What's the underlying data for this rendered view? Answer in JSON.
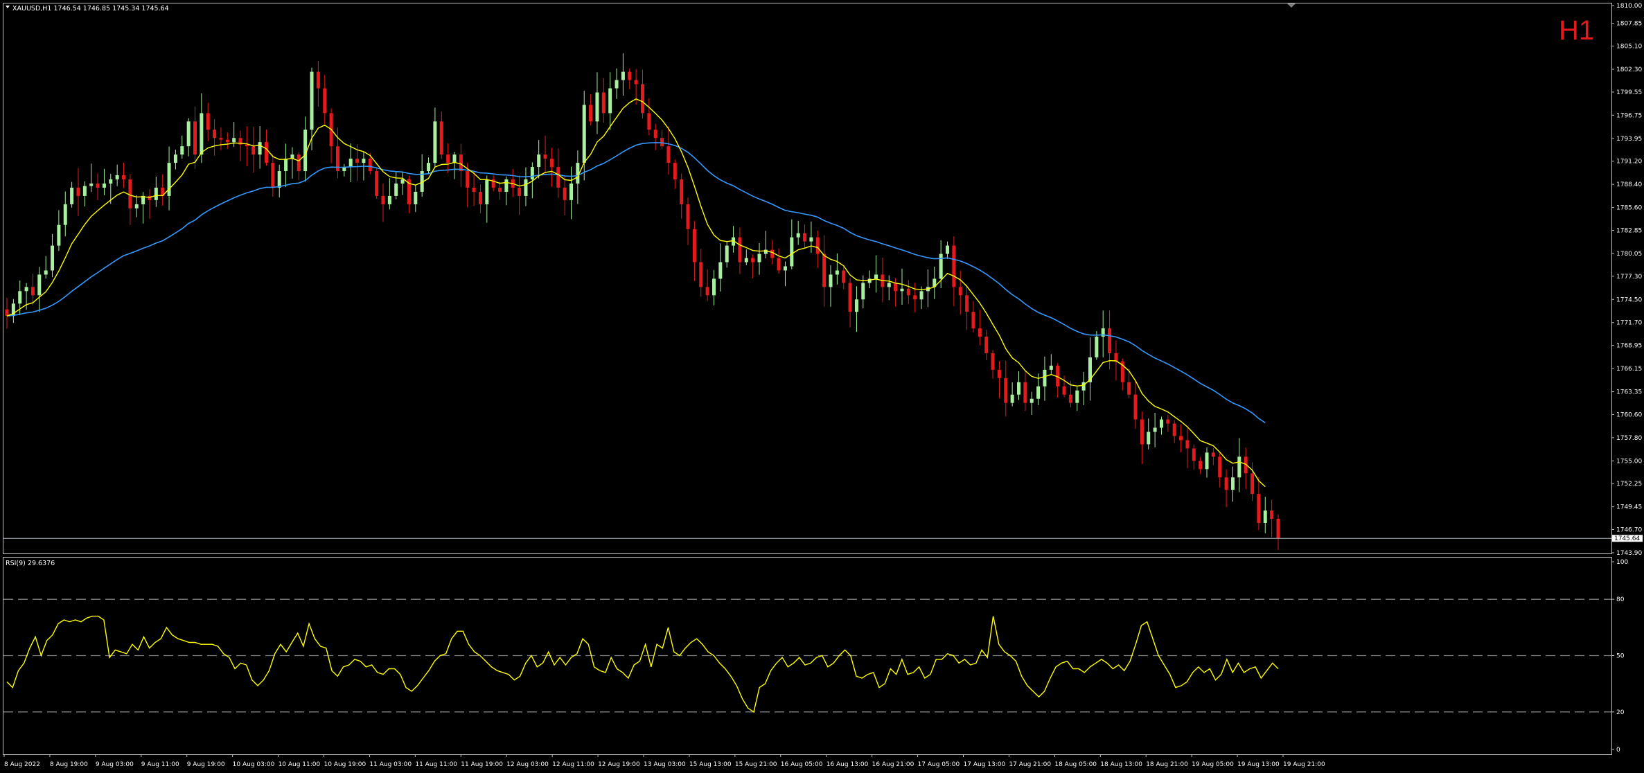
{
  "header": {
    "symbol_line": "XAUUSD,H1  1746.54 1746.85 1745.34 1745.64",
    "timeframe": "H1",
    "current_price_label": "1745.64"
  },
  "rsi": {
    "label": "RSI(9) 29.6376"
  },
  "colors": {
    "background": "#000000",
    "frame": "#c0c0c0",
    "bull_candle": "#a8f0a0",
    "bear_candle": "#e41a1c",
    "ma_fast": "#ffff00",
    "ma_slow": "#3399ff",
    "rsi_line": "#ffff00",
    "timeframe_label": "#e41a1c"
  },
  "chart_data": [
    {
      "type": "candlestick",
      "title": "XAUUSD,H1",
      "ylim": [
        1743.9,
        1810.0
      ],
      "y_ticks": [
        "1810.00",
        "1807.85",
        "1805.10",
        "1802.30",
        "1799.55",
        "1796.75",
        "1793.95",
        "1791.20",
        "1788.40",
        "1785.60",
        "1782.85",
        "1780.05",
        "1777.30",
        "1774.50",
        "1771.70",
        "1768.95",
        "1766.15",
        "1763.35",
        "1760.60",
        "1757.80",
        "1755.00",
        "1752.25",
        "1749.45",
        "1746.70",
        "1743.90"
      ],
      "x_ticks": [
        "8 Aug 2022",
        "8 Aug 19:00",
        "9 Aug 03:00",
        "9 Aug 11:00",
        "9 Aug 19:00",
        "10 Aug 03:00",
        "10 Aug 11:00",
        "10 Aug 19:00",
        "11 Aug 03:00",
        "11 Aug 11:00",
        "11 Aug 19:00",
        "12 Aug 03:00",
        "12 Aug 11:00",
        "12 Aug 19:00",
        "13 Aug 03:00",
        "15 Aug 13:00",
        "15 Aug 21:00",
        "16 Aug 05:00",
        "16 Aug 13:00",
        "16 Aug 21:00",
        "17 Aug 05:00",
        "17 Aug 13:00",
        "17 Aug 21:00",
        "18 Aug 05:00",
        "18 Aug 13:00",
        "18 Aug 21:00",
        "19 Aug 05:00",
        "19 Aug 13:00",
        "19 Aug 21:00"
      ],
      "close": [
        1772.5,
        1774.0,
        1775.5,
        1776.0,
        1775.0,
        1777.5,
        1778.0,
        1781.0,
        1783.5,
        1786.0,
        1788.0,
        1787.0,
        1788.2,
        1788.5,
        1788.0,
        1788.5,
        1789.0,
        1789.5,
        1789.0,
        1785.5,
        1786.0,
        1787.0,
        1786.5,
        1788.0,
        1787.0,
        1791.0,
        1792.0,
        1793.0,
        1796.0,
        1792.0,
        1797.0,
        1795.0,
        1794.0,
        1793.8,
        1793.5,
        1794.0,
        1793.2,
        1793.0,
        1792.0,
        1793.5,
        1791.0,
        1788.0,
        1790.0,
        1791.5,
        1792.0,
        1790.0,
        1795.0,
        1802.0,
        1800.0,
        1797.0,
        1793.0,
        1790.0,
        1790.5,
        1791.5,
        1791.0,
        1791.5,
        1790.0,
        1787.0,
        1786.0,
        1787.0,
        1788.5,
        1789.0,
        1786.0,
        1787.5,
        1790.0,
        1791.0,
        1796.0,
        1792.0,
        1791.0,
        1792.0,
        1790.0,
        1788.0,
        1787.5,
        1786.0,
        1789.0,
        1788.0,
        1787.5,
        1789.0,
        1788.0,
        1787.0,
        1789.0,
        1790.5,
        1792.0,
        1791.5,
        1790.5,
        1788.0,
        1786.5,
        1788.5,
        1791.0,
        1798.0,
        1796.0,
        1799.5,
        1797.0,
        1800.0,
        1801.0,
        1802.0,
        1801.0,
        1800.5,
        1797.0,
        1795.0,
        1794.0,
        1793.0,
        1791.0,
        1789.0,
        1786.0,
        1783.0,
        1779.0,
        1776.0,
        1775.0,
        1777.0,
        1779.0,
        1781.0,
        1782.0,
        1779.0,
        1779.5,
        1779.0,
        1780.0,
        1780.5,
        1779.5,
        1778.0,
        1778.5,
        1782.0,
        1782.5,
        1781.5,
        1782.0,
        1780.0,
        1776.0,
        1777.5,
        1778.0,
        1776.5,
        1773.0,
        1774.5,
        1776.5,
        1777.0,
        1777.5,
        1776.0,
        1776.5,
        1775.5,
        1775.8,
        1775.0,
        1774.5,
        1775.5,
        1776.0,
        1777.0,
        1780.0,
        1781.0,
        1776.0,
        1775.0,
        1773.0,
        1771.0,
        1770.0,
        1768.0,
        1766.0,
        1765.0,
        1762.0,
        1763.0,
        1764.5,
        1762.0,
        1762.5,
        1764.0,
        1766.0,
        1766.5,
        1764.0,
        1763.0,
        1762.0,
        1763.5,
        1764.5,
        1767.5,
        1770.0,
        1771.0,
        1768.0,
        1767.0,
        1764.5,
        1763.0,
        1760.0,
        1757.0,
        1758.5,
        1759.0,
        1760.0,
        1759.5,
        1758.0,
        1757.5,
        1756.5,
        1755.0,
        1754.0,
        1756.0,
        1755.5,
        1753.0,
        1751.5,
        1753.0,
        1755.5,
        1753.5,
        1751.0,
        1747.5,
        1749.0,
        1748.0,
        1745.64
      ],
      "series": [
        {
          "name": "",
          "values_role": "fast moving average"
        },
        {
          "name": "",
          "values_role": "slow moving average"
        }
      ],
      "grid": false
    },
    {
      "type": "line",
      "title": "RSI(9) 29.6376",
      "ylim": [
        0,
        100
      ],
      "y_ticks": [
        "100",
        "80",
        "50",
        "20",
        "0"
      ],
      "levels": [
        80,
        50,
        20
      ],
      "values": [
        36,
        33,
        42,
        46,
        54,
        60,
        50,
        58,
        61,
        67,
        69,
        68,
        69,
        68,
        70,
        71,
        71,
        69,
        49,
        53,
        52,
        51,
        56,
        53,
        60,
        54,
        57,
        59,
        65,
        61,
        59,
        58,
        57,
        57,
        56,
        56,
        56,
        55,
        51,
        49,
        43,
        46,
        45,
        37,
        34,
        37,
        42,
        51,
        56,
        52,
        57,
        62,
        55,
        67,
        59,
        55,
        54,
        42,
        39,
        44,
        45,
        48,
        47,
        44,
        45,
        41,
        40,
        43,
        43,
        40,
        33,
        31,
        34,
        38,
        42,
        47,
        50,
        51,
        59,
        63,
        63,
        56,
        52,
        50,
        47,
        44,
        42,
        41,
        40,
        37,
        39,
        46,
        50,
        44,
        46,
        52,
        45,
        49,
        45,
        49,
        51,
        59,
        56,
        44,
        42,
        41,
        49,
        43,
        41,
        38,
        45,
        47,
        56,
        44,
        56,
        54,
        65,
        52,
        50,
        54,
        57,
        59,
        56,
        52,
        50,
        46,
        43,
        39,
        34,
        27,
        22,
        20,
        33,
        35,
        42,
        46,
        49,
        44,
        46,
        49,
        45,
        46,
        49,
        50,
        44,
        46,
        50,
        53,
        50,
        39,
        38,
        40,
        41,
        33,
        35,
        43,
        40,
        48,
        40,
        41,
        44,
        38,
        40,
        48,
        48,
        51,
        50,
        46,
        48,
        45,
        46,
        53,
        49,
        71,
        56,
        52,
        50,
        47,
        39,
        34,
        31,
        28,
        31,
        38,
        44,
        46,
        47,
        43,
        43,
        41,
        44,
        46,
        48,
        46,
        43,
        45,
        42,
        47,
        56,
        66,
        68,
        59,
        50,
        45,
        40,
        33,
        34,
        36,
        41,
        44,
        41,
        43,
        37,
        40,
        48,
        41,
        46,
        41,
        43,
        44,
        38,
        42,
        46,
        43
      ]
    }
  ]
}
